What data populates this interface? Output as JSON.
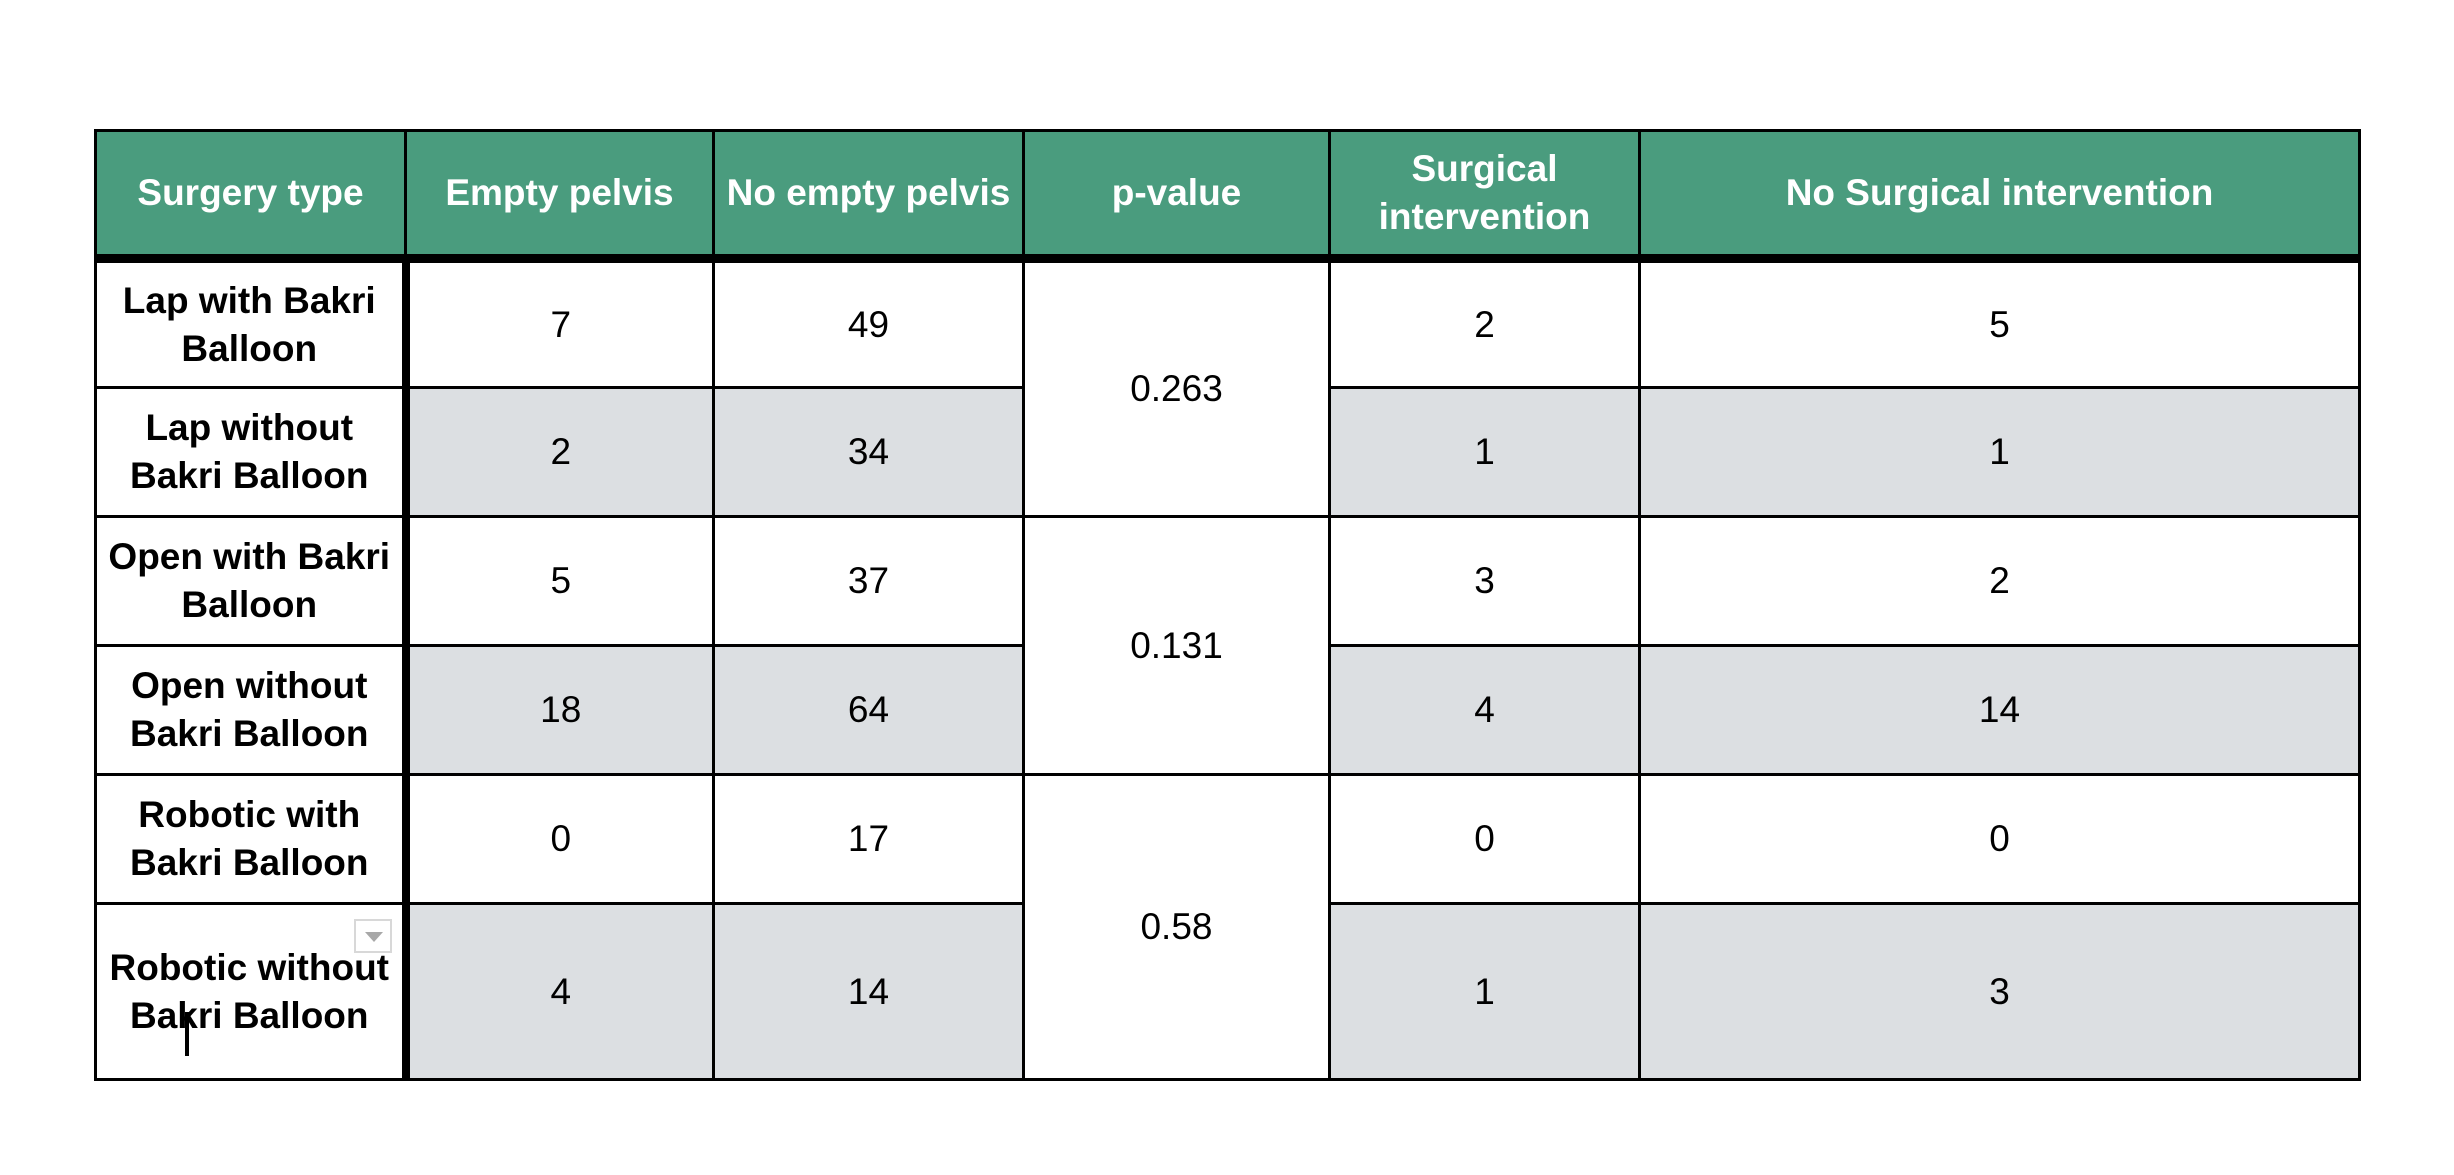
{
  "table": {
    "headers": [
      "Surgery type",
      "Empty pelvis",
      "No empty pelvis",
      "p-value",
      "Surgical intervention",
      "No Surgical intervention"
    ],
    "rows": [
      {
        "surgery_type": "Lap with Bakri Balloon",
        "empty_pelvis": "7",
        "no_empty_pelvis": "49",
        "surgical_intervention": "2",
        "no_surgical_intervention": "5"
      },
      {
        "surgery_type": "Lap without Bakri Balloon",
        "empty_pelvis": "2",
        "no_empty_pelvis": "34",
        "surgical_intervention": "1",
        "no_surgical_intervention": "1"
      },
      {
        "surgery_type": "Open with Bakri Balloon",
        "empty_pelvis": "5",
        "no_empty_pelvis": "37",
        "surgical_intervention": "3",
        "no_surgical_intervention": "2"
      },
      {
        "surgery_type": "Open without Bakri Balloon",
        "empty_pelvis": "18",
        "no_empty_pelvis": "64",
        "surgical_intervention": "4",
        "no_surgical_intervention": "14"
      },
      {
        "surgery_type": "Robotic with Bakri Balloon",
        "empty_pelvis": "0",
        "no_empty_pelvis": "17",
        "surgical_intervention": "0",
        "no_surgical_intervention": "0"
      },
      {
        "surgery_type": "Robotic without Bakri Balloon",
        "empty_pelvis": "4",
        "no_empty_pelvis": "14",
        "surgical_intervention": "1",
        "no_surgical_intervention": "3"
      }
    ],
    "p_values": [
      "0.263",
      "0.131",
      "0.58"
    ]
  },
  "colors": {
    "header_background": "#4a9c7e",
    "header_text": "#ffffff",
    "shaded_row": "#dcdfe2",
    "border": "#000000"
  },
  "icons": {
    "cell_dropdown": "chevron-down-icon"
  }
}
